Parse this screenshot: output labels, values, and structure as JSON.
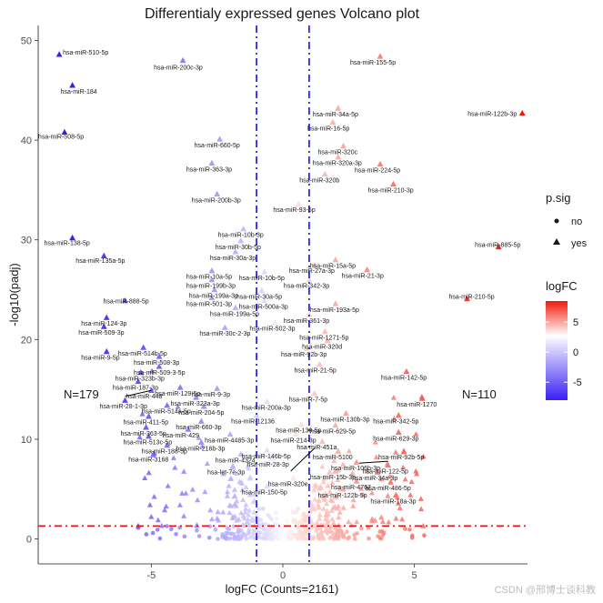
{
  "chart_data": {
    "type": "scatter",
    "title": "Differentialy expressed genes Volcano plot",
    "xlabel": "logFC (Counts=2161)",
    "ylabel": "-log10(padj)",
    "xlim": [
      -9.3,
      9.3
    ],
    "ylim": [
      -2.5,
      51.5
    ],
    "x_ticks": [
      -5,
      0,
      5
    ],
    "x_tick_labels": [
      "-5",
      "0",
      "5"
    ],
    "y_ticks": [
      0,
      10,
      20,
      30,
      40,
      50
    ],
    "y_tick_labels": [
      "0",
      "10",
      "20",
      "30",
      "40",
      "50"
    ],
    "logfc_threshold": [
      -1,
      1
    ],
    "padj_threshold": 1.3,
    "counts": {
      "down": "N=179",
      "up": "N=110"
    },
    "color_scale": {
      "low": "#3a1ff5",
      "mid": "#ffffff",
      "high": "#f11b0c",
      "min": -8,
      "max": 8.5
    },
    "legend": {
      "shape_title": "p.sig",
      "shape_no": "no",
      "shape_yes": "yes",
      "color_title": "logFC",
      "color_ticks": [
        "5",
        "0",
        "-5"
      ],
      "color_tick_values": [
        5,
        0,
        -5
      ]
    },
    "labeled_points": [
      {
        "label": "hsa-miR-510-5p",
        "x": -8.5,
        "y": 48.6
      },
      {
        "label": "hsa-miR-184",
        "x": -8.0,
        "y": 45.5
      },
      {
        "label": "hsa-miR-508-5p",
        "x": -8.3,
        "y": 40.8
      },
      {
        "label": "hsa-miR-138-5p",
        "x": -8.0,
        "y": 30.2
      },
      {
        "label": "hsa-miR-135a-5p",
        "x": -6.8,
        "y": 28.4
      },
      {
        "label": "hsa-miR-200c-3p",
        "x": -3.8,
        "y": 48.0
      },
      {
        "label": "hsa-miR-155-5p",
        "x": 3.7,
        "y": 48.4
      },
      {
        "label": "hsa-miR-122b-3p",
        "x": 9.1,
        "y": 42.7
      },
      {
        "label": "hsa-miR-34a-5p",
        "x": 2.1,
        "y": 43.2
      },
      {
        "label": "hsa-miR-16-5p",
        "x": 1.9,
        "y": 41.8
      },
      {
        "label": "hsa-miR-660-5p",
        "x": -2.4,
        "y": 40.1
      },
      {
        "label": "hsa-miR-320c",
        "x": 2.3,
        "y": 39.4
      },
      {
        "label": "hsa-miR-320a-3p",
        "x": 2.1,
        "y": 38.3
      },
      {
        "label": "hsa-miR-363-3p",
        "x": -2.7,
        "y": 37.7
      },
      {
        "label": "hsa-miR-224-5p",
        "x": 3.7,
        "y": 37.6
      },
      {
        "label": "hsa-miR-320b",
        "x": 1.6,
        "y": 36.6
      },
      {
        "label": "hsa-miR-210-3p",
        "x": 4.2,
        "y": 35.6
      },
      {
        "label": "hsa-miR-200b-3p",
        "x": -2.5,
        "y": 34.6
      },
      {
        "label": "hsa-miR-93-5p",
        "x": 0.6,
        "y": 33.6
      },
      {
        "label": "hsa-miR-10b-3p",
        "x": -1.5,
        "y": 31.1
      },
      {
        "label": "hsa-miR-885-5p",
        "x": 8.2,
        "y": 29.3
      },
      {
        "label": "hsa-miR-30b-5p",
        "x": -1.6,
        "y": 29.9
      },
      {
        "label": "hsa-miR-30a-3p",
        "x": -1.8,
        "y": 28.8
      },
      {
        "label": "hsa-miR-15a-5p",
        "x": 2.0,
        "y": 28.0
      },
      {
        "label": "hsa-miR-27a-3p",
        "x": 1.2,
        "y": 27.5
      },
      {
        "label": "hsa-miR-21-3p",
        "x": 3.2,
        "y": 27.0
      },
      {
        "label": "hsa-miR-10a-5p",
        "x": -2.7,
        "y": 26.9
      },
      {
        "label": "hsa-miR-10b-5p",
        "x": -0.7,
        "y": 26.8
      },
      {
        "label": "hsa-miR-199b-3p",
        "x": -2.7,
        "y": 26.0
      },
      {
        "label": "hsa-miR-342-3p",
        "x": 1.0,
        "y": 26.0
      },
      {
        "label": "hsa-miR-199a-3p",
        "x": -2.6,
        "y": 25.0
      },
      {
        "label": "hsa-miR-30a-5p",
        "x": -0.8,
        "y": 24.9
      },
      {
        "label": "hsa-miR-501-3p",
        "x": -2.7,
        "y": 24.2
      },
      {
        "label": "hsa-miR-500a-3p",
        "x": -0.7,
        "y": 23.9
      },
      {
        "label": "hsa-miR-210-5p",
        "x": 7.0,
        "y": 24.1
      },
      {
        "label": "hsa-miR-888-5p",
        "x": -6.0,
        "y": 23.9
      },
      {
        "label": "hsa-miR-193a-5p",
        "x": 2.0,
        "y": 23.6
      },
      {
        "label": "hsa-miR-199a-5p",
        "x": -1.8,
        "y": 23.2
      },
      {
        "label": "hsa-miR-361-3p",
        "x": 1.0,
        "y": 22.5
      },
      {
        "label": "hsa-miR-124-3p",
        "x": -6.7,
        "y": 22.2
      },
      {
        "label": "hsa-miR-502-3p",
        "x": -0.3,
        "y": 21.7
      },
      {
        "label": "hsa-miR-30c-2-3p",
        "x": -2.2,
        "y": 21.2
      },
      {
        "label": "hsa-miR-509-3p",
        "x": -6.8,
        "y": 21.3
      },
      {
        "label": "hsa-miR-1271-5p",
        "x": 1.6,
        "y": 20.8
      },
      {
        "label": "hsa-miR-320d",
        "x": 1.7,
        "y": 19.9
      },
      {
        "label": "hsa-miR-514b-5p",
        "x": -5.3,
        "y": 19.2
      },
      {
        "label": "hsa-miR-92b-3p",
        "x": 0.9,
        "y": 19.1
      },
      {
        "label": "hsa-miR-508-3p",
        "x": -4.7,
        "y": 18.3
      },
      {
        "label": "hsa-miR-9-5p",
        "x": -6.7,
        "y": 18.8
      },
      {
        "label": "hsa-miR-509-3-5p",
        "x": -4.7,
        "y": 17.3
      },
      {
        "label": "hsa-miR-21-5p",
        "x": 1.4,
        "y": 17.5
      },
      {
        "label": "hsa-miR-323b-3p",
        "x": -5.4,
        "y": 16.7
      },
      {
        "label": "hsa-miR-142-5p",
        "x": 4.7,
        "y": 16.8
      },
      {
        "label": "hsa-miR-187-3p",
        "x": -5.5,
        "y": 15.8
      },
      {
        "label": "hsa-miR-129-5p",
        "x": -3.9,
        "y": 15.2
      },
      {
        "label": "hsa-miR-9-3p",
        "x": -2.5,
        "y": 15.1
      },
      {
        "label": "hsa-miR-448",
        "x": -5.0,
        "y": 14.9
      },
      {
        "label": "hsa-miR-7-5p",
        "x": 1.2,
        "y": 14.6
      },
      {
        "label": "hsa-miR-323a-3p",
        "x": -3.3,
        "y": 14.2
      },
      {
        "label": "hsa-miR-200a-3p",
        "x": -0.6,
        "y": 13.8
      },
      {
        "label": "hsa-miR-1270",
        "x": 5.3,
        "y": 14.1
      },
      {
        "label": "hsa-miR-28-1-3p",
        "x": -6.0,
        "y": 13.9
      },
      {
        "label": "hsa-miR-514a-5p",
        "x": -4.4,
        "y": 13.4
      },
      {
        "label": "hsa-miR-204-5p",
        "x": -3.0,
        "y": 13.3
      },
      {
        "label": "hsa-miR-130b-3p",
        "x": 2.4,
        "y": 12.6
      },
      {
        "label": "hsa-miR-342-5p",
        "x": 4.4,
        "y": 12.4
      },
      {
        "label": "hsa-miR-411-5p",
        "x": -5.1,
        "y": 12.3
      },
      {
        "label": "hsa-miR-12136",
        "x": -1.0,
        "y": 12.4
      },
      {
        "label": "hsa-miR-660-3p",
        "x": -3.1,
        "y": 11.8
      },
      {
        "label": "hsa-miR-629-5p",
        "x": 2.0,
        "y": 11.4
      },
      {
        "label": "hsa-miR-139-5p",
        "x": 0.7,
        "y": 11.5
      },
      {
        "label": "hsa-miR-363-5p",
        "x": -5.2,
        "y": 11.2
      },
      {
        "label": "hsa-miR-429",
        "x": -3.6,
        "y": 11.0
      },
      {
        "label": "hsa-miR-4485-3p",
        "x": -2.0,
        "y": 10.5
      },
      {
        "label": "hsa-miR-214-3p",
        "x": 0.5,
        "y": 10.5
      },
      {
        "label": "hsa-miR-629-3p",
        "x": 4.4,
        "y": 10.7
      },
      {
        "label": "hsa-miR-513c-5p",
        "x": -5.1,
        "y": 10.3
      },
      {
        "label": "hsa-miR-451a",
        "x": 1.5,
        "y": 9.8
      },
      {
        "label": "hsa-miR-216b-3p",
        "x": -3.1,
        "y": 9.7
      },
      {
        "label": "hsa-miR-188-5p",
        "x": -4.4,
        "y": 9.4
      },
      {
        "label": "hsa-miR-146b-5p",
        "x": -0.6,
        "y": 8.9
      },
      {
        "label": "hsa-miR-5100",
        "x": 2.1,
        "y": 8.8
      },
      {
        "label": "hsa-miR-92b-5p",
        "x": 4.6,
        "y": 8.8
      },
      {
        "label": "hsa-miR-3168",
        "x": -4.9,
        "y": 8.6
      },
      {
        "label": "hsa-miR-4324",
        "x": -1.6,
        "y": 8.5
      },
      {
        "label": "hsa-miR-28-3p",
        "x": -0.4,
        "y": 8.1
      },
      {
        "label": "hsa-miR-106b-3p",
        "x": 2.8,
        "y": 7.7
      },
      {
        "label": "hsa-miR-122-5p",
        "x": 4.0,
        "y": 7.4
      },
      {
        "label": "hsa-let-7e-3p",
        "x": -1.9,
        "y": 7.3
      },
      {
        "label": "hsa-miR-15b-3p",
        "x": 2.0,
        "y": 6.8
      },
      {
        "label": "hsa-miR-34a-3p",
        "x": 3.6,
        "y": 6.7
      },
      {
        "label": "hsa-miR-320e",
        "x": 0.4,
        "y": 6.1
      },
      {
        "label": "hsa-miR-4767",
        "x": 2.8,
        "y": 5.8
      },
      {
        "label": "hsa-miR-486-5p",
        "x": 4.1,
        "y": 5.7
      },
      {
        "label": "hsa-miR-150-5p",
        "x": -0.6,
        "y": 5.3
      },
      {
        "label": "hsa-miR-122b-5p",
        "x": 2.3,
        "y": 5.0
      },
      {
        "label": "hsa-miR-18a-3p",
        "x": 4.3,
        "y": 4.4
      }
    ],
    "label_offsets": {
      "hsa-miR-510-5p": [
        4,
        0,
        "start"
      ],
      "hsa-miR-184": [
        -13,
        9,
        "start"
      ],
      "hsa-miR-508-5p": [
        -29,
        7,
        "start"
      ],
      "hsa-miR-138-5p": [
        -31,
        8,
        "start"
      ],
      "hsa-miR-135a-5p": [
        -31,
        8,
        "start"
      ],
      "hsa-miR-200c-3p": [
        -32,
        10,
        "start"
      ],
      "hsa-miR-155-5p": [
        -33,
        9,
        "start"
      ],
      "hsa-miR-122b-3p": [
        -60,
        3,
        "start"
      ],
      "hsa-miR-885-5p": [
        -26,
        0,
        "start"
      ],
      "hsa-miR-210-5p": [
        -20,
        0,
        "start"
      ],
      "hsa-miR-888-5p": [
        -24,
        3,
        "start"
      ]
    }
  }
}
